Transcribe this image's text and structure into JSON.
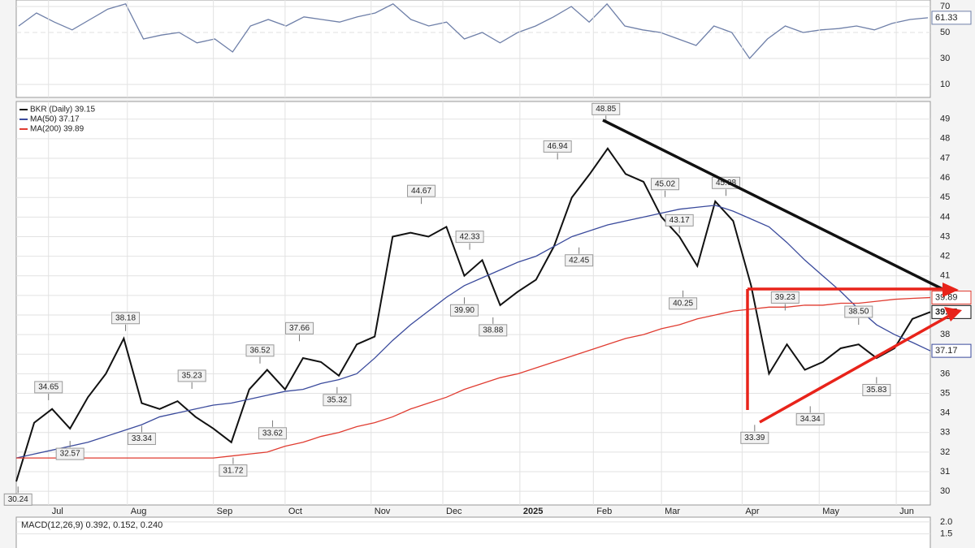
{
  "chart_data": [
    {
      "type": "line",
      "panel": "rsi",
      "ylim": [
        0,
        75
      ],
      "yticks": [
        10,
        30,
        50,
        70
      ],
      "series": [
        {
          "name": "RSI",
          "color": "#6e7fa8",
          "value_label": "61.33",
          "values": [
            55,
            65,
            58,
            52,
            60,
            68,
            72,
            45,
            48,
            50,
            42,
            45,
            35,
            55,
            60,
            55,
            62,
            60,
            58,
            62,
            65,
            72,
            60,
            55,
            58,
            45,
            50,
            42,
            50,
            55,
            62,
            70,
            58,
            72,
            55,
            52,
            50,
            45,
            40,
            55,
            50,
            30,
            45,
            55,
            50,
            52,
            53,
            55,
            52,
            57,
            60,
            61.33
          ]
        }
      ]
    },
    {
      "type": "line",
      "panel": "price",
      "xlim": [
        0,
        51
      ],
      "ylim": [
        29.3,
        49.9
      ],
      "xticks": [
        {
          "value": 1.8,
          "label": "Jul"
        },
        {
          "value": 6.2,
          "label": "Aug"
        },
        {
          "value": 11,
          "label": "Sep"
        },
        {
          "value": 15,
          "label": "Oct"
        },
        {
          "value": 19.8,
          "label": "Nov"
        },
        {
          "value": 23.8,
          "label": "Dec"
        },
        {
          "value": 28.1,
          "label": "2025"
        },
        {
          "value": 32.2,
          "label": "Feb"
        },
        {
          "value": 36,
          "label": "Mar"
        },
        {
          "value": 40.5,
          "label": "Apr"
        },
        {
          "value": 44.8,
          "label": "May"
        },
        {
          "value": 49.1,
          "label": "Jun"
        }
      ],
      "yticks": [
        30,
        31,
        32,
        33,
        34,
        35,
        36,
        37,
        38,
        39,
        40,
        41,
        42,
        43,
        44,
        45,
        46,
        47,
        48,
        49
      ],
      "grid": true,
      "series": [
        {
          "name": "BKR (Daily) 39.15",
          "color": "#111111",
          "value_label": "39.15",
          "values": [
            30.5,
            33.5,
            34.2,
            33.2,
            34.8,
            36.0,
            37.8,
            34.5,
            34.2,
            34.6,
            33.8,
            33.2,
            32.5,
            35.2,
            36.2,
            35.2,
            36.8,
            36.6,
            35.9,
            37.5,
            37.9,
            43.0,
            43.2,
            43.0,
            43.5,
            41.0,
            41.8,
            39.5,
            40.2,
            40.8,
            42.5,
            45.0,
            46.2,
            47.5,
            46.2,
            45.8,
            44.0,
            43.0,
            41.5,
            44.8,
            43.8,
            40.5,
            36.0,
            37.5,
            36.2,
            36.6,
            37.3,
            37.5,
            36.8,
            37.3,
            38.8,
            39.15
          ]
        },
        {
          "name": "MA(50) 37.17",
          "color": "#3a4a9c",
          "value_label": "37.17",
          "values": [
            31.7,
            31.9,
            32.1,
            32.3,
            32.5,
            32.8,
            33.1,
            33.4,
            33.8,
            34.0,
            34.2,
            34.4,
            34.5,
            34.7,
            34.9,
            35.1,
            35.2,
            35.5,
            35.7,
            36.0,
            36.8,
            37.7,
            38.5,
            39.2,
            39.9,
            40.5,
            40.9,
            41.3,
            41.7,
            42.0,
            42.5,
            43.0,
            43.3,
            43.6,
            43.8,
            44.0,
            44.2,
            44.4,
            44.5,
            44.6,
            44.3,
            43.9,
            43.5,
            42.7,
            41.8,
            41.0,
            40.2,
            39.3,
            38.5,
            38.0,
            37.6,
            37.17
          ]
        },
        {
          "name": "MA(200) 39.89",
          "color": "#e03c31",
          "value_label": "39.89",
          "values": [
            31.7,
            31.7,
            31.7,
            31.7,
            31.7,
            31.7,
            31.7,
            31.7,
            31.7,
            31.7,
            31.7,
            31.7,
            31.8,
            31.9,
            32.0,
            32.3,
            32.5,
            32.8,
            33.0,
            33.3,
            33.5,
            33.8,
            34.2,
            34.5,
            34.8,
            35.2,
            35.5,
            35.8,
            36.0,
            36.3,
            36.6,
            36.9,
            37.2,
            37.5,
            37.8,
            38.0,
            38.3,
            38.5,
            38.8,
            39.0,
            39.2,
            39.3,
            39.4,
            39.4,
            39.5,
            39.5,
            39.6,
            39.6,
            39.7,
            39.8,
            39.85,
            39.89
          ]
        }
      ],
      "annotations": [
        {
          "x": 0.1,
          "y": 30.24,
          "label": "30.24",
          "position": "below"
        },
        {
          "x": 1.8,
          "y": 34.65,
          "label": "34.65",
          "position": "above"
        },
        {
          "x": 3.0,
          "y": 32.57,
          "label": "32.57",
          "position": "below"
        },
        {
          "x": 6.1,
          "y": 38.18,
          "label": "38.18",
          "position": "above"
        },
        {
          "x": 7.0,
          "y": 33.34,
          "label": "33.34",
          "position": "below"
        },
        {
          "x": 9.8,
          "y": 35.23,
          "label": "35.23",
          "position": "above"
        },
        {
          "x": 12.1,
          "y": 31.72,
          "label": "31.72",
          "position": "below"
        },
        {
          "x": 13.6,
          "y": 36.52,
          "label": "36.52",
          "position": "above"
        },
        {
          "x": 14.3,
          "y": 33.62,
          "label": "33.62",
          "position": "below"
        },
        {
          "x": 15.8,
          "y": 37.66,
          "label": "37.66",
          "position": "above"
        },
        {
          "x": 17.9,
          "y": 35.32,
          "label": "35.32",
          "position": "below"
        },
        {
          "x": 22.6,
          "y": 44.67,
          "label": "44.67",
          "position": "above"
        },
        {
          "x": 25.3,
          "y": 42.33,
          "label": "42.33",
          "position": "above"
        },
        {
          "x": 25.0,
          "y": 39.9,
          "label": "39.90",
          "position": "below"
        },
        {
          "x": 26.6,
          "y": 38.88,
          "label": "38.88",
          "position": "below"
        },
        {
          "x": 30.2,
          "y": 46.94,
          "label": "46.94",
          "position": "above"
        },
        {
          "x": 31.4,
          "y": 42.45,
          "label": "42.45",
          "position": "below"
        },
        {
          "x": 32.9,
          "y": 48.85,
          "label": "48.85",
          "position": "above"
        },
        {
          "x": 36.2,
          "y": 45.02,
          "label": "45.02",
          "position": "above"
        },
        {
          "x": 37.0,
          "y": 43.17,
          "label": "43.17",
          "position": "above"
        },
        {
          "x": 37.2,
          "y": 40.25,
          "label": "40.25",
          "position": "below"
        },
        {
          "x": 39.6,
          "y": 45.08,
          "label": "45.08",
          "position": "above"
        },
        {
          "x": 42.9,
          "y": 39.23,
          "label": "39.23",
          "position": "above"
        },
        {
          "x": 41.2,
          "y": 33.39,
          "label": "33.39",
          "position": "below"
        },
        {
          "x": 44.3,
          "y": 34.34,
          "label": "34.34",
          "position": "below"
        },
        {
          "x": 47.0,
          "y": 38.5,
          "label": "38.50",
          "position": "above"
        },
        {
          "x": 48.0,
          "y": 35.83,
          "label": "35.83",
          "position": "below"
        }
      ]
    },
    {
      "type": "line",
      "panel": "macd",
      "title": "MACD(12,26,9) 0.392, 0.152, 0.240",
      "ylim": [
        0.5,
        2.2
      ],
      "yticks": [
        {
          "value": 2.0,
          "label": "2.0"
        },
        1.5
      ]
    }
  ]
}
